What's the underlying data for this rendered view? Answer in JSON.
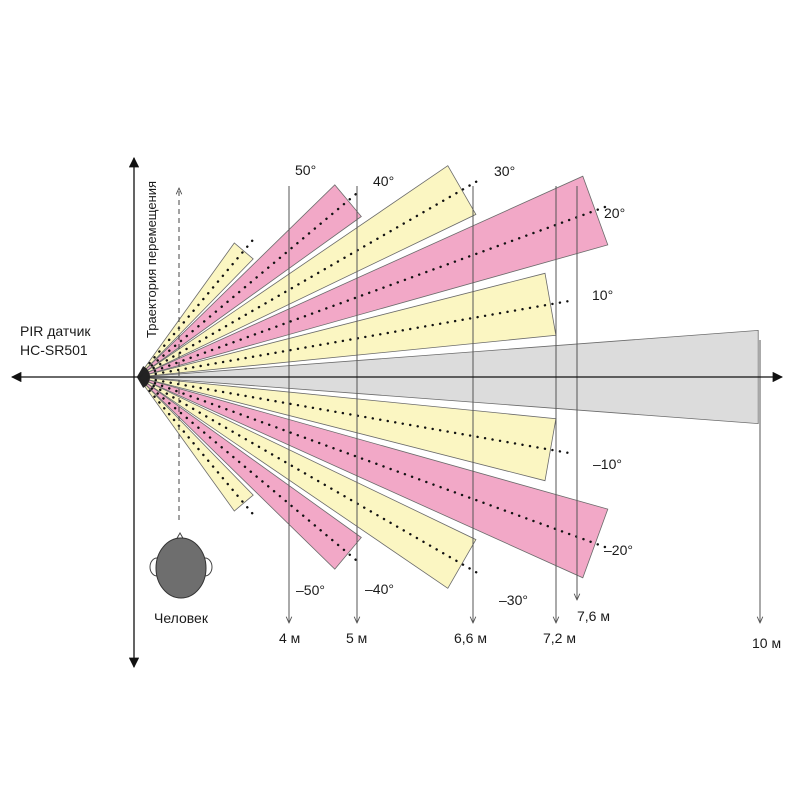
{
  "sensor_label": [
    "PIR датчик",
    "HC-SR501"
  ],
  "trajectory_label": "Траектория перемещения",
  "person_label": "Человек",
  "colors": {
    "yellow": "#fbf6c2",
    "pink": "#f2a8c7",
    "gray": "#dcdcdc",
    "outline": "#6b6b6b",
    "dots": "#111111",
    "person": "#6e6e6e"
  },
  "zones": [
    {
      "angle": 50,
      "label": "50°",
      "color": "yellow"
    },
    {
      "angle": 40,
      "label": "40°",
      "color": "pink"
    },
    {
      "angle": 30,
      "label": "30°",
      "color": "yellow"
    },
    {
      "angle": 20,
      "label": "20°",
      "color": "pink"
    },
    {
      "angle": 10,
      "label": "10°",
      "color": "yellow"
    },
    {
      "angle": 0,
      "label": "",
      "color": "gray"
    },
    {
      "angle": -10,
      "label": "–10°",
      "color": "yellow"
    },
    {
      "angle": -20,
      "label": "–20°",
      "color": "pink"
    },
    {
      "angle": -30,
      "label": "–30°",
      "color": "yellow"
    },
    {
      "angle": -40,
      "label": "–40°",
      "color": "pink"
    },
    {
      "angle": -50,
      "label": "–50°",
      "color": "yellow"
    }
  ],
  "distances": [
    {
      "value": "4 м"
    },
    {
      "value": "5 м"
    },
    {
      "value": "6,6 м"
    },
    {
      "value": "7,2 м"
    },
    {
      "value": "7,6 м"
    },
    {
      "value": "10 м"
    }
  ]
}
